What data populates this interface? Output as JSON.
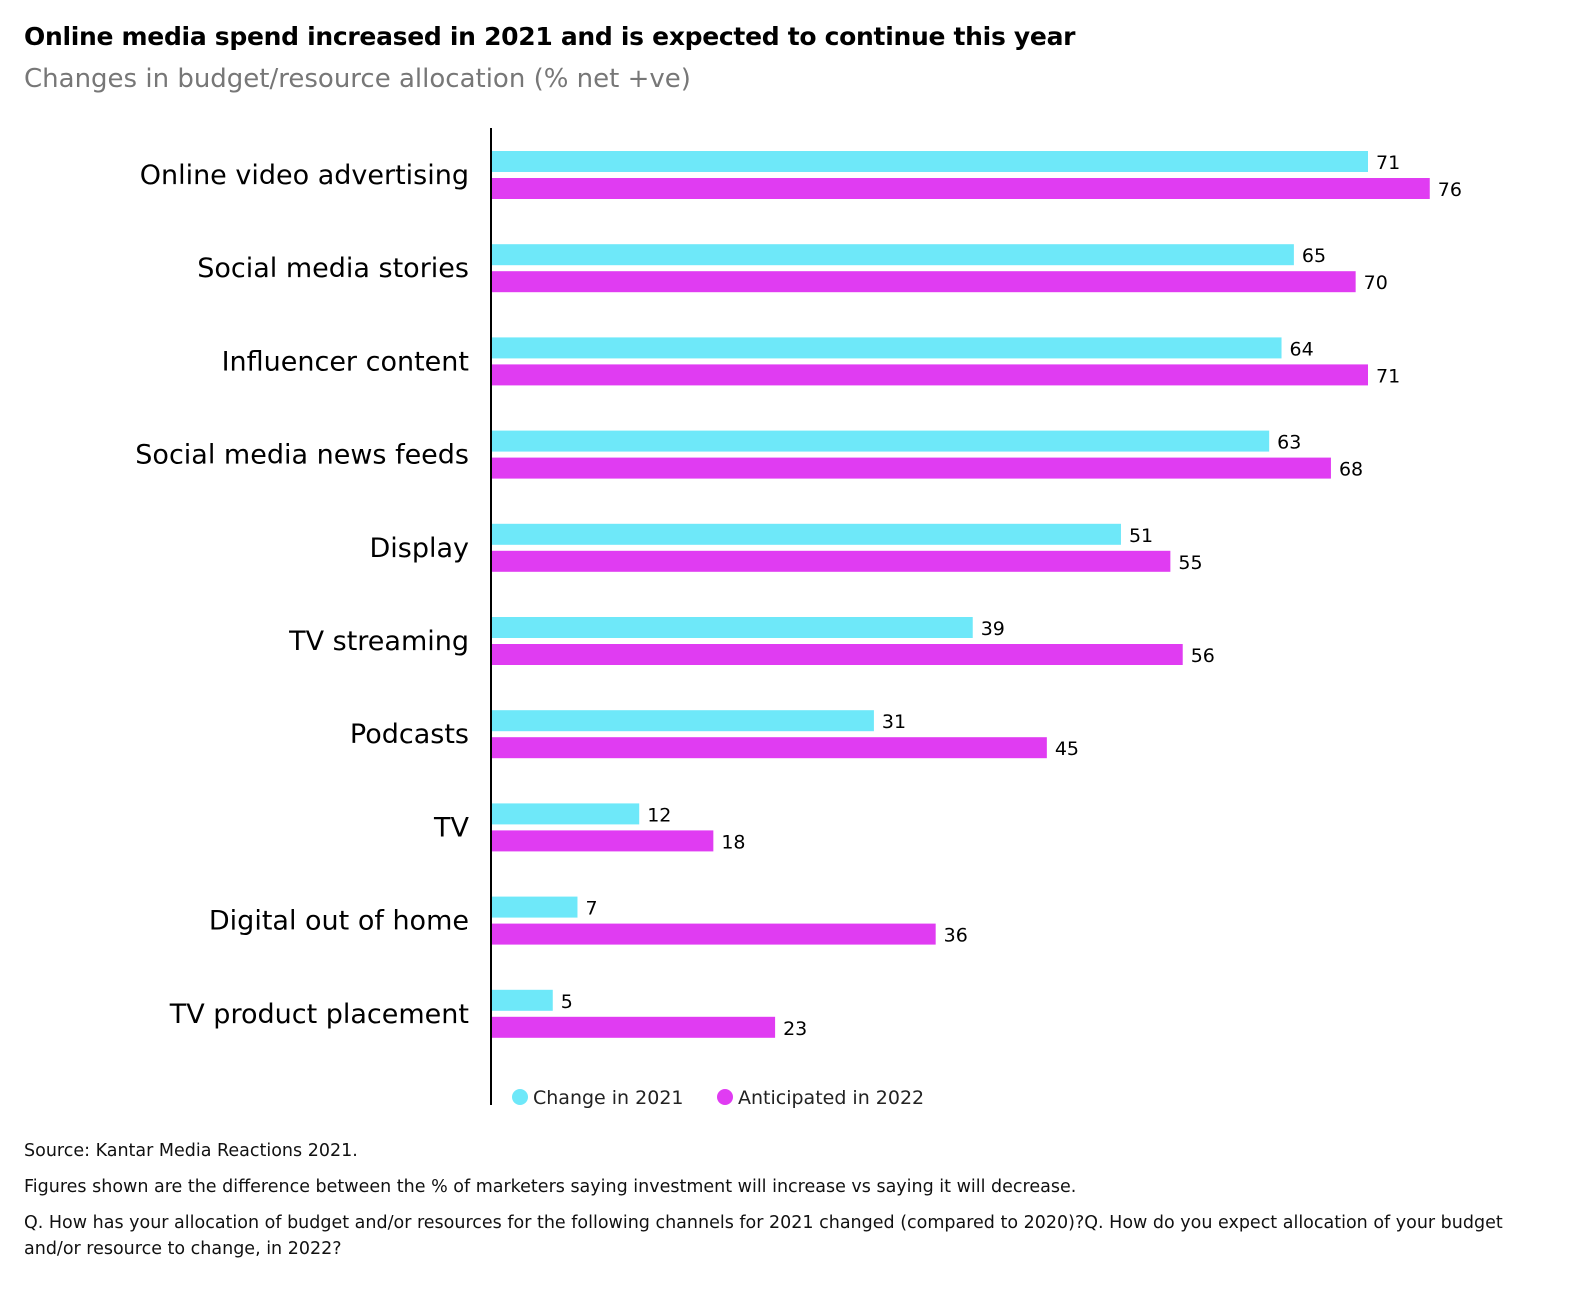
{
  "chart_data": {
    "type": "bar",
    "orientation": "horizontal",
    "title": "Online media spend increased in 2021 and is expected to continue this year",
    "subtitle": "Changes in budget/resource allocation (% net +ve)",
    "categories": [
      "Online video advertising",
      "Social media stories",
      "Influencer content",
      "Social media news feeds",
      "Display",
      "TV streaming",
      "Podcasts",
      "TV",
      "Digital out of home",
      "TV product placement"
    ],
    "series": [
      {
        "name": "Change in 2021",
        "color": "#6ee8f9",
        "values": [
          71,
          65,
          64,
          63,
          51,
          39,
          31,
          12,
          7,
          5
        ]
      },
      {
        "name": "Anticipated in 2022",
        "color": "#e03cf2",
        "values": [
          76,
          70,
          71,
          68,
          55,
          56,
          45,
          18,
          36,
          23
        ]
      }
    ],
    "xlim": [
      0,
      80
    ],
    "grid": false,
    "legend_position": "bottom",
    "data_labels": true
  },
  "footer": {
    "source": "Source: Kantar Media Reactions 2021.",
    "note": "Figures shown are the difference between the % of marketers saying investment will increase vs saying it will decrease.",
    "question": "Q. How has your allocation of budget and/or resources for the following channels for 2021 changed (compared to 2020)?Q. How do you expect allocation of your budget and/or resource to change, in 2022?"
  }
}
